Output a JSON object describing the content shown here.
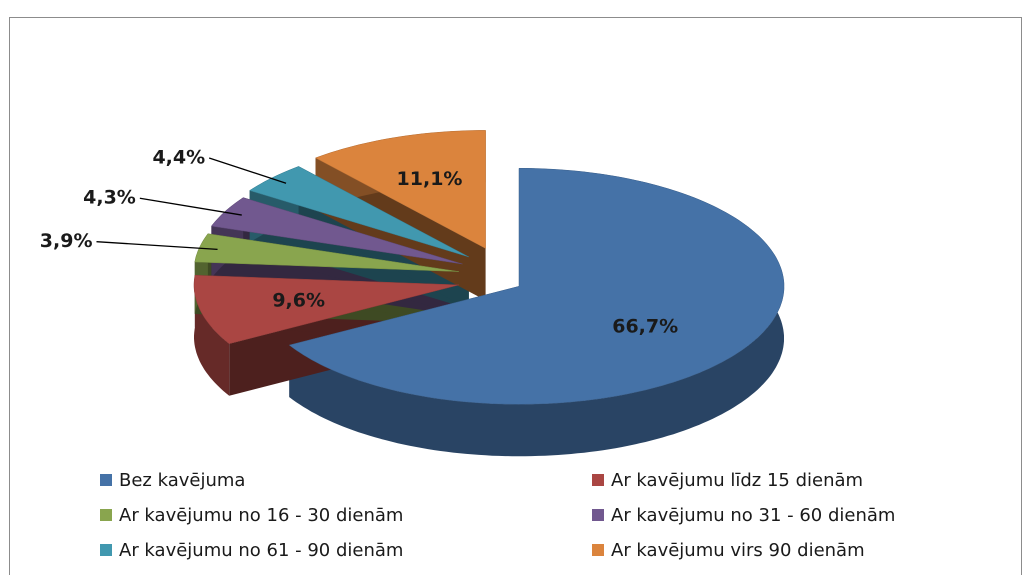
{
  "chart_data": {
    "type": "pie",
    "categories": [
      "Bez kavējuma",
      "Ar kavējumu līdz 15 dienām",
      "Ar kavējumu no 16 - 30 dienām",
      "Ar kavējumu no 31 - 60 dienām",
      "Ar kavējumu no 61 - 90 dienām",
      "Ar kavējumu virs 90 dienām"
    ],
    "values": [
      66.7,
      9.6,
      3.9,
      4.3,
      4.4,
      11.1
    ],
    "value_labels": [
      "66,7%",
      "9,6%",
      "3,9%",
      "4,3%",
      "4,4%",
      "11,1%"
    ],
    "colors": [
      "#4572a7",
      "#aa4643",
      "#89a54e",
      "#71588f",
      "#4198af",
      "#db843d"
    ],
    "legend": "bottom"
  }
}
